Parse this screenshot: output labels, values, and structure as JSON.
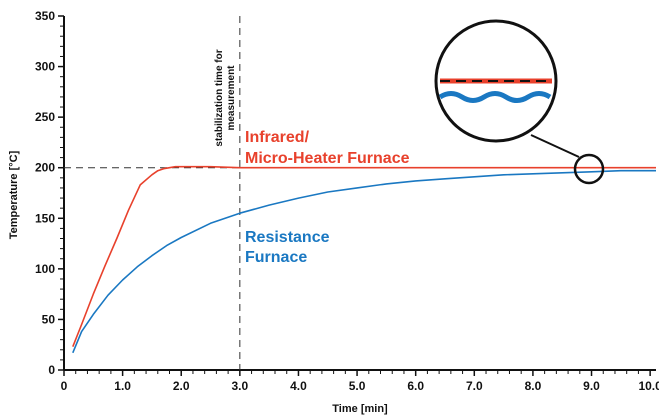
{
  "chart_data": {
    "type": "line",
    "title": "",
    "xlabel": "Time [min]",
    "ylabel": "Temperature [°C]",
    "xlim": [
      0,
      10.1
    ],
    "ylim": [
      0,
      350
    ],
    "x_ticks": [
      "0",
      "1.0",
      "2.0",
      "3.0",
      "4.0",
      "5.0",
      "6.0",
      "7.0",
      "8.0",
      "9.0",
      "10.0"
    ],
    "y_ticks": [
      "0",
      "50",
      "100",
      "150",
      "200",
      "250",
      "300",
      "350"
    ],
    "grid": false,
    "reference_lines": {
      "horizontal_y": 200,
      "vertical_x": 3.0
    },
    "annotation": {
      "line1": "stabilization time for",
      "line2": "measurement"
    },
    "series": [
      {
        "label_line1": "Infrared/",
        "label_line2": "Micro-Heater Furnace",
        "color": "#e8412c",
        "x": [
          0.15,
          0.3,
          0.5,
          0.7,
          0.9,
          1.1,
          1.3,
          1.5,
          1.6,
          1.7,
          1.8,
          1.9,
          2.0,
          2.2,
          2.5,
          3.0,
          4.0,
          5.0,
          6.0,
          7.0,
          8.0,
          9.0,
          10.1
        ],
        "y": [
          23,
          45,
          75,
          103,
          130,
          158,
          183,
          193,
          197,
          199,
          200,
          201,
          201,
          201,
          201,
          200,
          200,
          200,
          200,
          200,
          200,
          200,
          200
        ]
      },
      {
        "label_line1": "Resistance",
        "label_line2": "Furnace",
        "color": "#1a78c2",
        "x": [
          0.15,
          0.3,
          0.5,
          0.75,
          1.0,
          1.25,
          1.5,
          1.75,
          2.0,
          2.5,
          3.0,
          3.5,
          4.0,
          4.5,
          5.0,
          5.5,
          6.0,
          6.5,
          7.0,
          7.5,
          8.0,
          8.5,
          9.0,
          9.5,
          10.1
        ],
        "y": [
          17,
          38,
          55,
          74,
          89,
          102,
          113,
          123,
          131,
          145,
          155,
          163,
          170,
          176,
          180,
          184,
          187,
          189,
          191,
          193,
          194,
          195,
          196,
          197,
          197
        ]
      }
    ],
    "zoom_inset": true
  }
}
